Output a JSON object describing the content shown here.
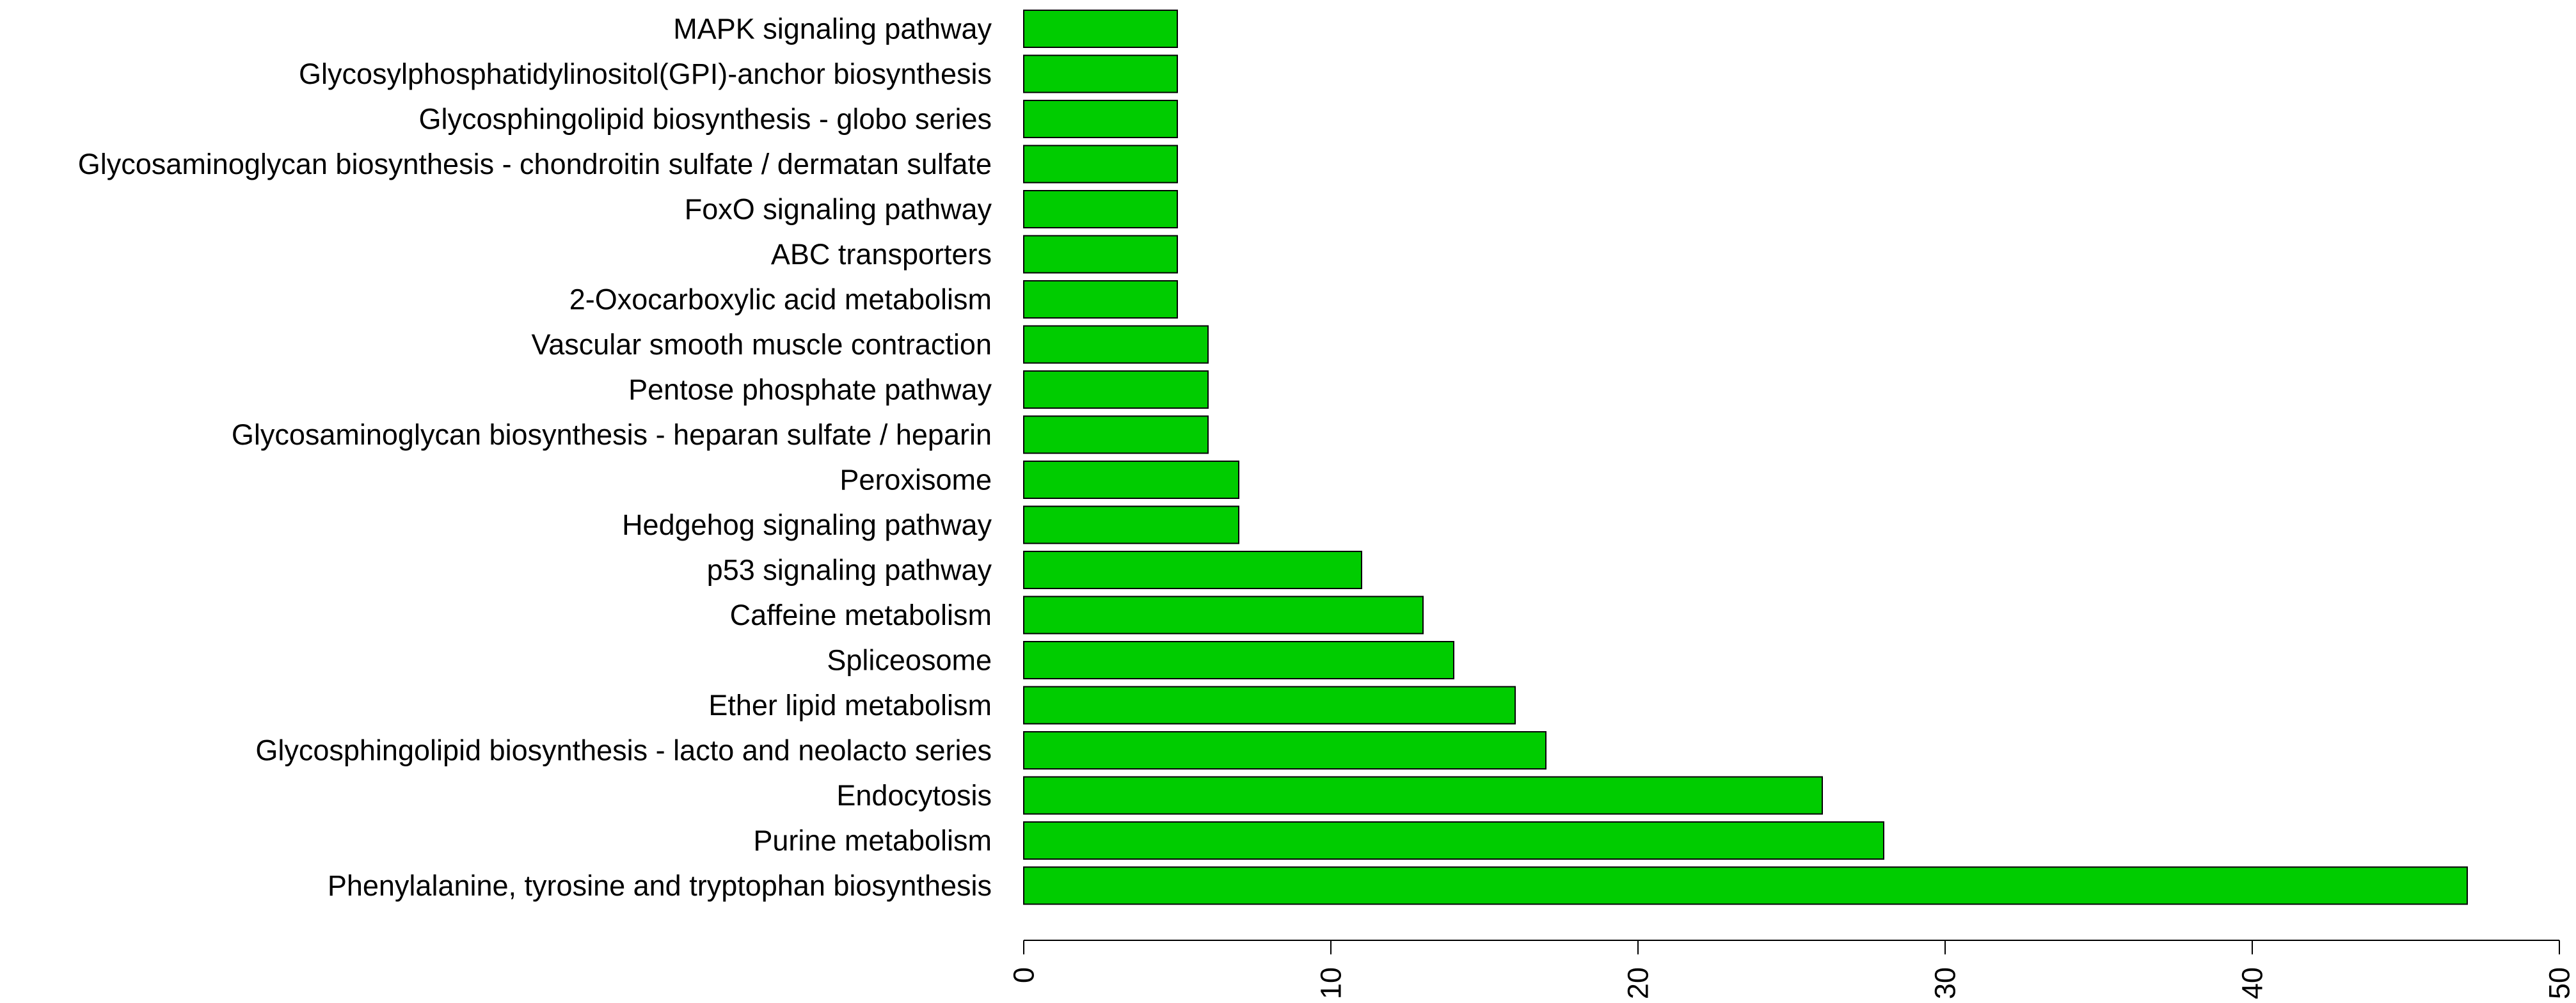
{
  "chart_data": {
    "type": "bar",
    "orientation": "horizontal",
    "bar_color": "#00CC00",
    "bar_edge_color": "#000000",
    "categories": [
      "MAPK signaling pathway",
      "Glycosylphosphatidylinositol(GPI)-anchor biosynthesis",
      "Glycosphingolipid biosynthesis - globo series",
      "Glycosaminoglycan biosynthesis - chondroitin sulfate / dermatan sulfate",
      "FoxO signaling pathway",
      "ABC transporters",
      "2-Oxocarboxylic acid metabolism",
      "Vascular smooth muscle contraction",
      "Pentose phosphate pathway",
      "Glycosaminoglycan biosynthesis - heparan sulfate / heparin",
      "Peroxisome",
      "Hedgehog signaling pathway",
      "p53 signaling pathway",
      "Caffeine metabolism",
      "Spliceosome",
      "Ether lipid metabolism",
      "Glycosphingolipid biosynthesis - lacto and neolacto series",
      "Endocytosis",
      "Purine metabolism",
      "Phenylalanine, tyrosine and tryptophan biosynthesis"
    ],
    "values": [
      5,
      5,
      5,
      5,
      5,
      5,
      5,
      6,
      6,
      6,
      7,
      7,
      11,
      13,
      14,
      16,
      17,
      26,
      28,
      47
    ],
    "xlim": [
      0,
      50
    ],
    "x_ticks": [
      "0",
      "10",
      "20",
      "30",
      "40",
      "50"
    ],
    "tick_label_rotation": "vertical",
    "grid": false,
    "legend": "none"
  }
}
